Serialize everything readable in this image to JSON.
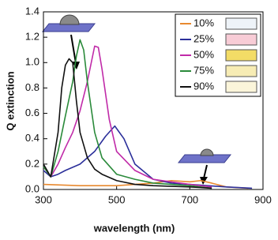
{
  "chart_data": {
    "type": "line",
    "xlabel": "wavelength (nm)",
    "ylabel": "Q extinction",
    "xlim": [
      300,
      900
    ],
    "xticks": [
      300,
      500,
      700,
      900
    ],
    "ylim": [
      0,
      1.4
    ],
    "yticks": [
      {
        "value": 0,
        "label": "0.0"
      },
      {
        "value": 0.2,
        "label": "0.2"
      },
      {
        "value": 0.4,
        "label": "0.4"
      },
      {
        "value": 0.6,
        "label": "0.6"
      },
      {
        "value": 0.8,
        "label": "0.8"
      },
      {
        "value": 1,
        "label": "1.0"
      },
      {
        "value": 1.2,
        "label": "1.2"
      },
      {
        "value": 1.4,
        "label": "1.4"
      }
    ],
    "series": [
      {
        "name": "10%",
        "color": "#e8892f",
        "swatch_color": "#eef3f8",
        "x": [
          300,
          400,
          500,
          600,
          650,
          700,
          730,
          760,
          800,
          860
        ],
        "values": [
          0.04,
          0.03,
          0.03,
          0.05,
          0.07,
          0.06,
          0.07,
          0.05,
          0.02,
          0.01
        ]
      },
      {
        "name": "25%",
        "color": "#2b2f9a",
        "swatch_color": "#f8ccd6",
        "x": [
          300,
          320,
          340,
          360,
          400,
          440,
          470,
          495,
          520,
          550,
          600,
          650,
          700,
          800,
          870
        ],
        "values": [
          0.15,
          0.1,
          0.12,
          0.15,
          0.2,
          0.3,
          0.42,
          0.5,
          0.4,
          0.2,
          0.08,
          0.05,
          0.04,
          0.02,
          0.01
        ]
      },
      {
        "name": "50%",
        "color": "#c02aa8",
        "swatch_color": "#f3dc66",
        "x": [
          300,
          320,
          340,
          360,
          380,
          400,
          420,
          440,
          450,
          460,
          480,
          500,
          550,
          600,
          650,
          700,
          760
        ],
        "values": [
          0.18,
          0.1,
          0.2,
          0.33,
          0.45,
          0.62,
          0.85,
          1.13,
          1.12,
          0.95,
          0.55,
          0.3,
          0.15,
          0.08,
          0.06,
          0.04,
          0.02
        ]
      },
      {
        "name": "75%",
        "color": "#2a8a3a",
        "swatch_color": "#f7ecb4",
        "x": [
          300,
          320,
          340,
          360,
          380,
          390,
          400,
          410,
          420,
          440,
          460,
          500,
          550,
          600,
          700,
          760
        ],
        "values": [
          0.18,
          0.1,
          0.3,
          0.58,
          0.85,
          1.05,
          1.18,
          1.1,
          0.85,
          0.45,
          0.25,
          0.12,
          0.08,
          0.05,
          0.03,
          0.01
        ]
      },
      {
        "name": "90%",
        "color": "#111111",
        "swatch_color": "#fbf5da",
        "x": [
          300,
          320,
          340,
          350,
          360,
          370,
          380,
          390,
          400,
          420,
          440,
          460,
          500,
          550,
          600,
          700,
          760
        ],
        "values": [
          0.2,
          0.1,
          0.45,
          0.8,
          0.98,
          1.03,
          1.0,
          0.7,
          0.45,
          0.25,
          0.16,
          0.12,
          0.07,
          0.04,
          0.03,
          0.02,
          0.01
        ]
      }
    ]
  }
}
